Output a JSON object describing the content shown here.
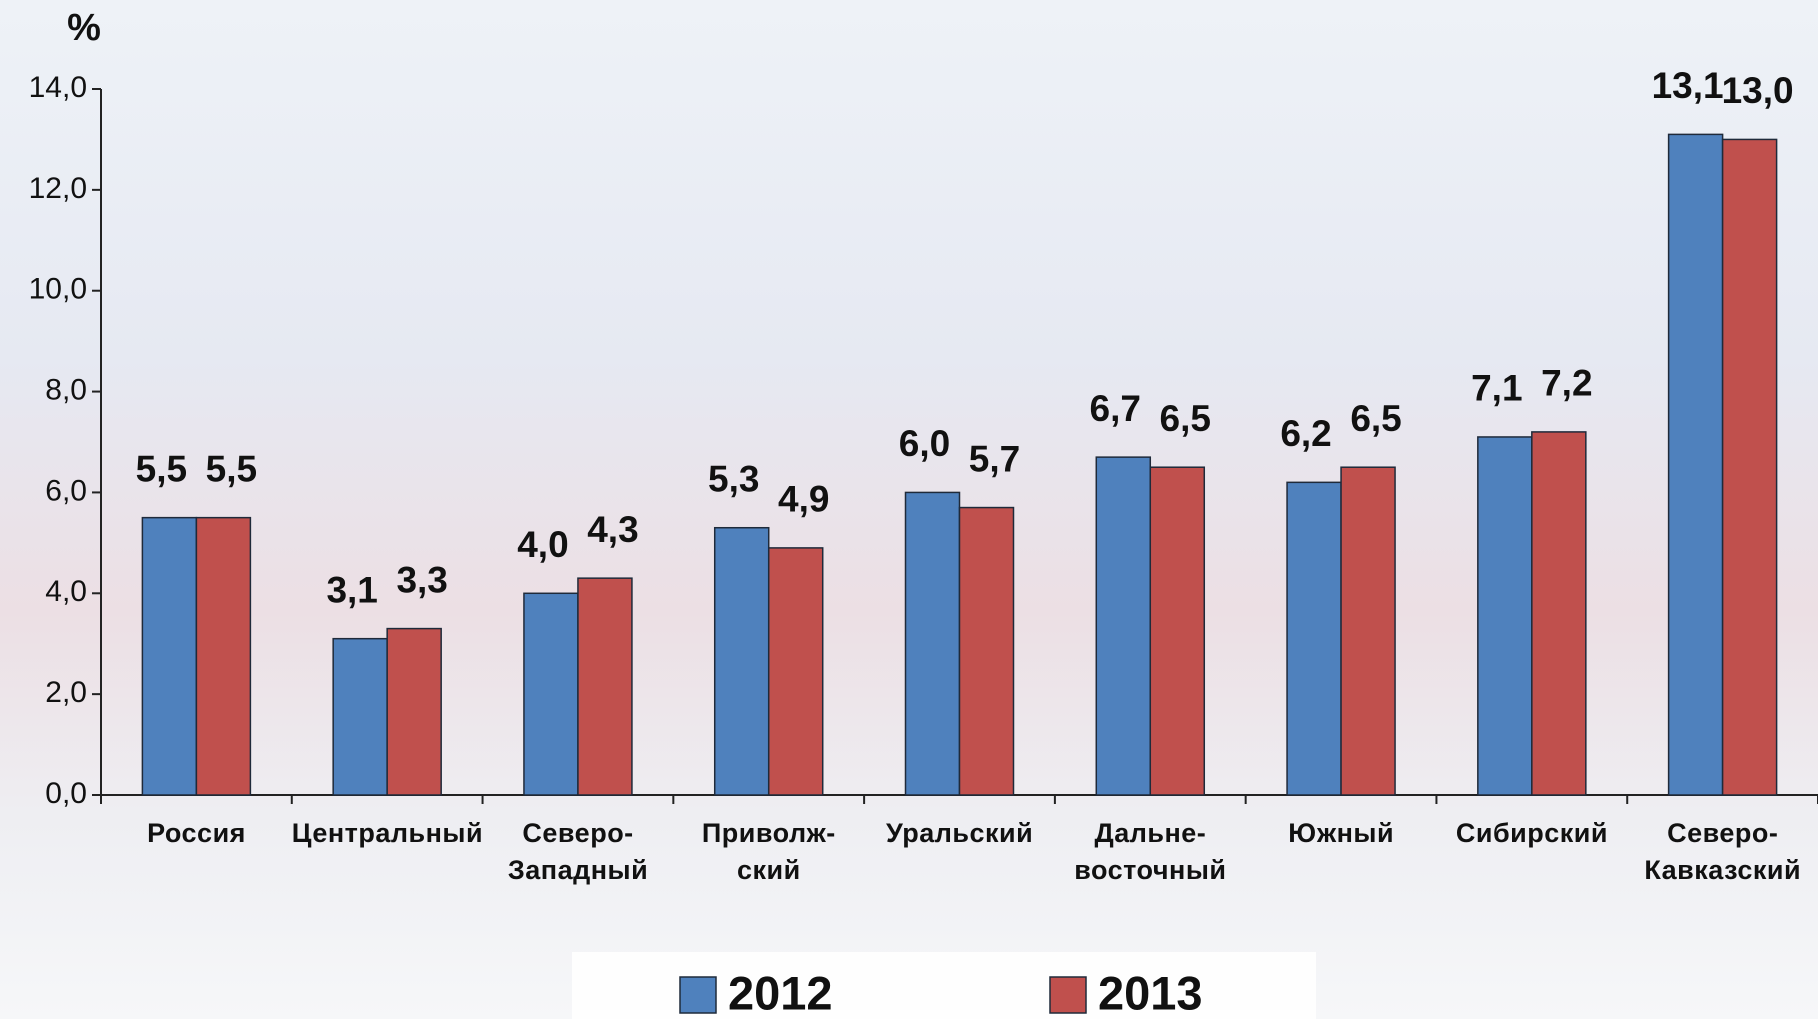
{
  "chart_data": {
    "type": "bar",
    "y_label": "%",
    "categories": [
      "Россия",
      "Центральный",
      "Северо-\nЗападный",
      "Приволж-\nский",
      "Уральский",
      "Дальне-\nвосточный",
      "Южный",
      "Сибирский",
      "Северо-\nКавказский"
    ],
    "series": [
      {
        "name": "2012",
        "color": "#4f81bd",
        "values": [
          5.5,
          3.1,
          4.0,
          5.3,
          6.0,
          6.7,
          6.2,
          7.1,
          13.1
        ],
        "value_labels": [
          "5,5",
          "3,1",
          "4,0",
          "5,3",
          "6,0",
          "6,7",
          "6,2",
          "7,1",
          "13,1"
        ]
      },
      {
        "name": "2013",
        "color": "#c0504d",
        "values": [
          5.5,
          3.3,
          4.3,
          4.9,
          5.7,
          6.5,
          6.5,
          7.2,
          13.0
        ],
        "value_labels": [
          "5,5",
          "3,3",
          "4,3",
          "4,9",
          "5,7",
          "6,5",
          "6,5",
          "7,2",
          "13,0"
        ]
      }
    ],
    "ylim": [
      0,
      14
    ],
    "yticks": [
      {
        "value": 0,
        "label": "0,0"
      },
      {
        "value": 2,
        "label": "2,0"
      },
      {
        "value": 4,
        "label": "4,0"
      },
      {
        "value": 6,
        "label": "6,0"
      },
      {
        "value": 8,
        "label": "8,0"
      },
      {
        "value": 10,
        "label": "10,0"
      },
      {
        "value": 12,
        "label": "12,0"
      },
      {
        "value": 14,
        "label": "14,0"
      }
    ],
    "legend": "bottom"
  }
}
